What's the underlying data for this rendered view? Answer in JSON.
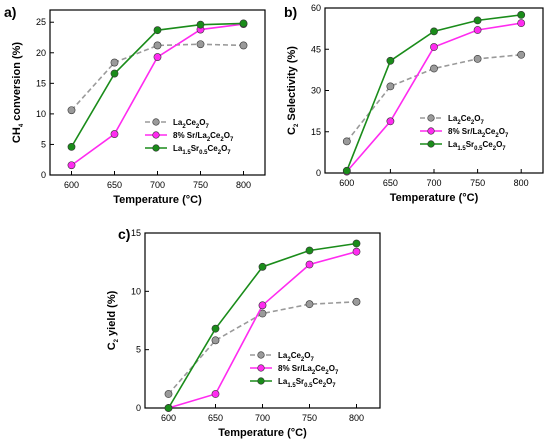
{
  "panels": {
    "a": "a)",
    "b": "b)",
    "c": "c)"
  },
  "chart_data": [
    {
      "type": "line",
      "panel": "a)",
      "xlabel": "Temperature (°C)",
      "ylabel": "CH4 conversion (%)",
      "x": [
        600,
        650,
        700,
        750,
        800
      ],
      "xticks": [
        600,
        650,
        700,
        750,
        800
      ],
      "yticks": [
        0,
        5,
        10,
        15,
        20,
        25
      ],
      "xlim": [
        575,
        825
      ],
      "ylim": [
        0,
        27
      ],
      "legend_position": "center-right",
      "series": [
        {
          "name": "La2Ce2O7",
          "values": [
            10.6,
            18.4,
            21.2,
            21.4,
            21.2
          ],
          "color": "#9a9a9a",
          "dashed": true
        },
        {
          "name": "8% Sr/La2Ce2O7",
          "values": [
            1.6,
            6.7,
            19.3,
            23.8,
            24.7
          ],
          "color": "#ff2bf0",
          "dashed": false
        },
        {
          "name": "La1.5Sr0.5Ce2O7",
          "values": [
            4.6,
            16.6,
            23.7,
            24.6,
            24.8
          ],
          "color": "#1a8c1a",
          "dashed": false
        }
      ]
    },
    {
      "type": "line",
      "panel": "b)",
      "xlabel": "Temperature (°C)",
      "ylabel": "C2 Selectivity (%)",
      "x": [
        600,
        650,
        700,
        750,
        800
      ],
      "xticks": [
        600,
        650,
        700,
        750,
        800
      ],
      "yticks": [
        0,
        15,
        30,
        45,
        60
      ],
      "xlim": [
        575,
        825
      ],
      "ylim": [
        0,
        60
      ],
      "legend_position": "center-right",
      "series": [
        {
          "name": "La2Ce2O7",
          "values": [
            11.5,
            31.5,
            38.0,
            41.5,
            43.0
          ],
          "color": "#9a9a9a",
          "dashed": true
        },
        {
          "name": "8% Sr/La2Ce2O7",
          "values": [
            0.5,
            18.8,
            45.8,
            52.0,
            54.5
          ],
          "color": "#ff2bf0",
          "dashed": false
        },
        {
          "name": "La1.5Sr0.5Ce2O7",
          "values": [
            0.8,
            40.8,
            51.5,
            55.5,
            57.5
          ],
          "color": "#1a8c1a",
          "dashed": false
        }
      ]
    },
    {
      "type": "line",
      "panel": "c)",
      "xlabel": "Temperature (°C)",
      "ylabel": "C2 yield (%)",
      "x": [
        600,
        650,
        700,
        750,
        800
      ],
      "xticks": [
        600,
        650,
        700,
        750,
        800
      ],
      "yticks": [
        0,
        5,
        10,
        15
      ],
      "xlim": [
        575,
        825
      ],
      "ylim": [
        0,
        15
      ],
      "legend_position": "bottom-right",
      "series": [
        {
          "name": "La2Ce2O7",
          "values": [
            1.2,
            5.8,
            8.1,
            8.9,
            9.1
          ],
          "color": "#9a9a9a",
          "dashed": true
        },
        {
          "name": "8% Sr/La2Ce2O7",
          "values": [
            0.0,
            1.2,
            8.8,
            12.3,
            13.4
          ],
          "color": "#ff2bf0",
          "dashed": false
        },
        {
          "name": "La1.5Sr0.5Ce2O7",
          "values": [
            0.0,
            6.8,
            12.1,
            13.5,
            14.1
          ],
          "color": "#1a8c1a",
          "dashed": false
        }
      ]
    }
  ],
  "legend_labels": [
    {
      "base": "La",
      "sub1": "2",
      "mid": "Ce",
      "sub2": "2",
      "end": "O",
      "sub3": "7"
    },
    {
      "pre": "8% Sr/",
      "base": "La",
      "sub1": "2",
      "mid": "Ce",
      "sub2": "2",
      "end": "O",
      "sub3": "7"
    },
    {
      "base": "La",
      "sub1": "1.5",
      "mid2": "Sr",
      "sub1b": "0.5",
      "mid": "Ce",
      "sub2": "2",
      "end": "O",
      "sub3": "7"
    }
  ]
}
